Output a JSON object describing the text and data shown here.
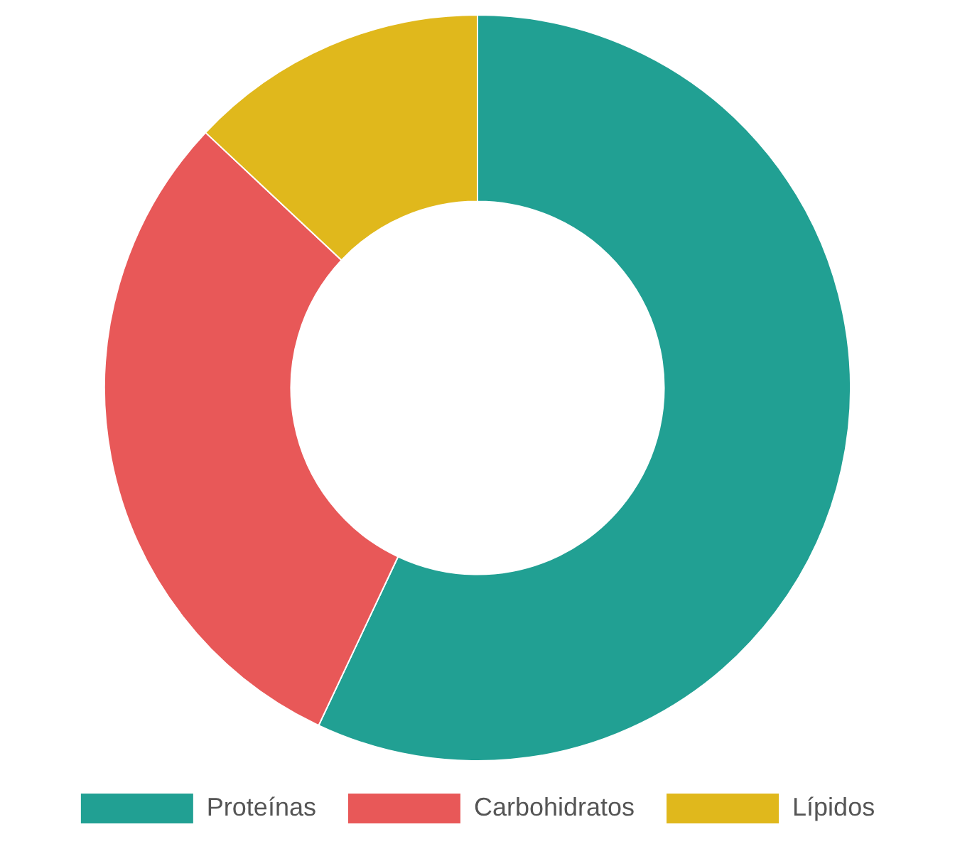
{
  "chart_data": {
    "type": "donut",
    "categories": [
      "Proteínas",
      "Carbohidratos",
      "Lípidos"
    ],
    "values": [
      57,
      30,
      13
    ],
    "colors": [
      "#21a093",
      "#e85858",
      "#e0b81c"
    ],
    "legend": "bottom"
  }
}
